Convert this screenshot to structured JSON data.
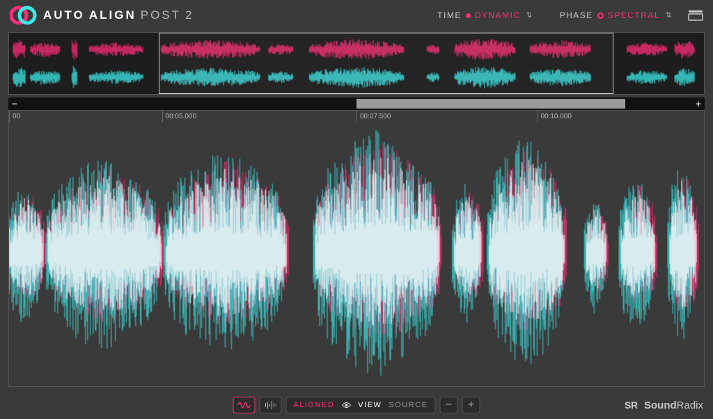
{
  "colors": {
    "bg": "#3a3a3a",
    "panel": "#1d1d1d",
    "border": "#555555",
    "pink": "#ff2e79",
    "cyan": "#3ee8e8",
    "white": "#ffffff",
    "scroll_thumb": "#9a9a9a",
    "text": "#c8c8c8"
  },
  "header": {
    "app_name_1": "AUTO",
    "app_name_2": "ALIGN",
    "app_name_3": "POST",
    "app_version": "2",
    "time_label": "TIME",
    "time_value": "DYNAMIC",
    "phase_label": "PHASE",
    "phase_value": "SPECTRAL"
  },
  "overview": {
    "viewport_start_pct": 21.5,
    "viewport_end_pct": 87.0
  },
  "scrollbar": {
    "zoom_out_label": "−",
    "zoom_in_label": "+",
    "thumb_start_pct": 50.0,
    "thumb_end_pct": 90.0
  },
  "ruler": {
    "ticks": [
      {
        "pos_pct": 0,
        "label": "00"
      },
      {
        "pos_pct": 22,
        "label": "00:05.000"
      },
      {
        "pos_pct": 50,
        "label": "00:07.500"
      },
      {
        "pos_pct": 76,
        "label": "00:10.000"
      }
    ]
  },
  "footer": {
    "aligned_label": "ALIGNED",
    "view_label": "VIEW",
    "source_label": "SOURCE",
    "zoom_out": "−",
    "zoom_in": "+",
    "brand_mark": "SR",
    "brand_name_1": "Sound",
    "brand_name_2": "Radix"
  },
  "waveform": {
    "type": "audio-waveform-overlay",
    "layers": [
      "pink",
      "cyan",
      "white"
    ],
    "overview_seed_a": 11,
    "overview_seed_b": 29,
    "main_seed_a": 17,
    "main_seed_b": 41,
    "segments_overview": [
      {
        "start": 0.0,
        "end": 0.02,
        "amp": 0.85
      },
      {
        "start": 0.025,
        "end": 0.07,
        "amp": 0.6
      },
      {
        "start": 0.085,
        "end": 0.095,
        "amp": 0.95
      },
      {
        "start": 0.11,
        "end": 0.19,
        "amp": 0.55
      },
      {
        "start": 0.215,
        "end": 0.36,
        "amp": 0.75
      },
      {
        "start": 0.37,
        "end": 0.41,
        "amp": 0.45
      },
      {
        "start": 0.43,
        "end": 0.57,
        "amp": 0.8
      },
      {
        "start": 0.6,
        "end": 0.62,
        "amp": 0.4
      },
      {
        "start": 0.64,
        "end": 0.73,
        "amp": 0.85
      },
      {
        "start": 0.75,
        "end": 0.84,
        "amp": 0.7
      },
      {
        "start": 0.89,
        "end": 0.95,
        "amp": 0.55
      },
      {
        "start": 0.96,
        "end": 0.99,
        "amp": 0.75
      }
    ],
    "segments_main": [
      {
        "start": 0.0,
        "end": 0.05,
        "amp": 0.55
      },
      {
        "start": 0.055,
        "end": 0.22,
        "amp": 0.75
      },
      {
        "start": 0.225,
        "end": 0.4,
        "amp": 0.8
      },
      {
        "start": 0.44,
        "end": 0.62,
        "amp": 0.95
      },
      {
        "start": 0.64,
        "end": 0.68,
        "amp": 0.55
      },
      {
        "start": 0.69,
        "end": 0.8,
        "amp": 0.9
      },
      {
        "start": 0.83,
        "end": 0.86,
        "amp": 0.45
      },
      {
        "start": 0.88,
        "end": 0.93,
        "amp": 0.6
      },
      {
        "start": 0.95,
        "end": 0.99,
        "amp": 0.7
      }
    ]
  }
}
